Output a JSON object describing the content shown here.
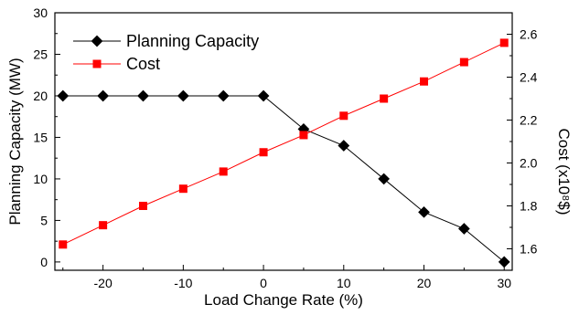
{
  "chart_data": {
    "type": "line",
    "xlabel": "Load Change Rate (%)",
    "ylabel_left": "Planning Capacity (MW)",
    "ylabel_right": "Cost (x10⁸$)",
    "x": [
      -25,
      -20,
      -15,
      -10,
      -5,
      0,
      5,
      10,
      15,
      20,
      25,
      30
    ],
    "xlim": [
      -26,
      31
    ],
    "xticks": [
      "-20",
      "-10",
      "0",
      "10",
      "20",
      "30"
    ],
    "ylim_left": [
      -1,
      30
    ],
    "yticks_left": [
      "0",
      "5",
      "10",
      "15",
      "20",
      "25",
      "30"
    ],
    "ylim_right": [
      1.5,
      2.7
    ],
    "yticks_right": [
      "1.6",
      "1.8",
      "2.0",
      "2.2",
      "2.4",
      "2.6"
    ],
    "grid": false,
    "legend_position": "top-left",
    "series": [
      {
        "name": "Planning Capacity",
        "axis": "left",
        "marker": "diamond",
        "color": "#000000",
        "values": [
          20,
          20,
          20,
          20,
          20,
          20,
          16,
          14,
          10,
          6,
          4,
          0
        ]
      },
      {
        "name": "Cost",
        "axis": "right",
        "marker": "square",
        "color": "#ff0000",
        "values": [
          1.62,
          1.71,
          1.8,
          1.88,
          1.96,
          2.05,
          2.13,
          2.22,
          2.3,
          2.38,
          2.47,
          2.56
        ]
      }
    ]
  }
}
